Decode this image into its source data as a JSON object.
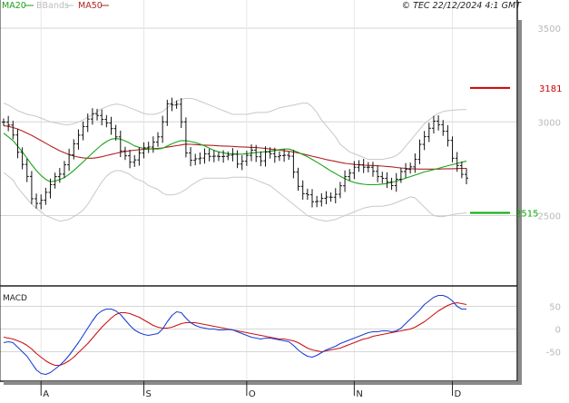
{
  "header": {
    "legend": [
      {
        "label": "MA20",
        "color": "#1aa31a"
      },
      {
        "label": "BBands",
        "color": "#bdbdbd"
      },
      {
        "label": "MA50",
        "color": "#b22222"
      }
    ],
    "copyright": "© TEC 22/12/2024 4:1 GMT"
  },
  "price_panel": {
    "y_ticks": [
      {
        "value": 3500,
        "label": "3500"
      },
      {
        "value": 3000,
        "label": "3000"
      },
      {
        "value": 2500,
        "label": "2500"
      }
    ],
    "levels": [
      {
        "value": 3181,
        "label": "3181",
        "color": "#cc0000"
      },
      {
        "value": 2515,
        "label": "2515",
        "color": "#00aa00"
      }
    ]
  },
  "macd_panel": {
    "title": "MACD",
    "y_ticks": [
      {
        "value": 50,
        "label": "50"
      },
      {
        "value": 0,
        "label": "0"
      },
      {
        "value": -50,
        "label": "-50"
      }
    ]
  },
  "x_axis": {
    "ticks": [
      {
        "index": 8,
        "label": "A"
      },
      {
        "index": 30,
        "label": "S"
      },
      {
        "index": 52,
        "label": "O"
      },
      {
        "index": 75,
        "label": "N"
      },
      {
        "index": 96,
        "label": "D"
      }
    ]
  },
  "chart_data": {
    "type": "line",
    "price_ylim": [
      2125,
      3650
    ],
    "macd_ylim": [
      -115,
      95
    ],
    "close": [
      2999,
      2983,
      2930,
      2838,
      2773,
      2709,
      2590,
      2565,
      2582,
      2624,
      2665,
      2708,
      2721,
      2771,
      2824,
      2883,
      2929,
      2975,
      3015,
      3043,
      3034,
      3013,
      2994,
      2964,
      2920,
      2845,
      2819,
      2785,
      2797,
      2834,
      2862,
      2866,
      2892,
      2920,
      3000,
      3096,
      3090,
      3094,
      3000,
      2834,
      2795,
      2803,
      2807,
      2829,
      2816,
      2817,
      2815,
      2816,
      2822,
      2827,
      2775,
      2790,
      2821,
      2849,
      2814,
      2792,
      2839,
      2830,
      2814,
      2820,
      2822,
      2817,
      2732,
      2656,
      2617,
      2611,
      2574,
      2576,
      2592,
      2599,
      2598,
      2614,
      2659,
      2708,
      2727,
      2758,
      2771,
      2758,
      2758,
      2736,
      2708,
      2699,
      2679,
      2660,
      2694,
      2735,
      2747,
      2760,
      2800,
      2880,
      2921,
      2966,
      3004,
      2985,
      2950,
      2901,
      2806,
      2767,
      2720,
      2700
    ],
    "ma20": [
      2940,
      2920,
      2900,
      2870,
      2840,
      2806,
      2772,
      2740,
      2714,
      2693,
      2681,
      2684,
      2692,
      2703,
      2720,
      2741,
      2763,
      2786,
      2810,
      2834,
      2856,
      2878,
      2895,
      2908,
      2911,
      2908,
      2898,
      2886,
      2872,
      2864,
      2859,
      2856,
      2855,
      2855,
      2859,
      2871,
      2883,
      2893,
      2900,
      2899,
      2895,
      2890,
      2881,
      2872,
      2860,
      2848,
      2840,
      2835,
      2830,
      2829,
      2828,
      2828,
      2830,
      2834,
      2836,
      2838,
      2841,
      2843,
      2847,
      2852,
      2855,
      2855,
      2848,
      2838,
      2826,
      2814,
      2800,
      2785,
      2770,
      2754,
      2738,
      2724,
      2710,
      2697,
      2685,
      2677,
      2671,
      2667,
      2665,
      2665,
      2666,
      2668,
      2671,
      2677,
      2684,
      2691,
      2700,
      2708,
      2716,
      2725,
      2733,
      2739,
      2745,
      2752,
      2759,
      2766,
      2772,
      2778,
      2785,
      2790
    ],
    "ma50": [
      2980,
      2976,
      2970,
      2962,
      2952,
      2940,
      2928,
      2914,
      2900,
      2886,
      2872,
      2859,
      2846,
      2835,
      2825,
      2818,
      2812,
      2808,
      2806,
      2806,
      2809,
      2814,
      2820,
      2826,
      2832,
      2838,
      2842,
      2846,
      2849,
      2851,
      2853,
      2855,
      2857,
      2859,
      2861,
      2865,
      2869,
      2873,
      2877,
      2881,
      2880,
      2879,
      2877,
      2876,
      2875,
      2874,
      2872,
      2871,
      2870,
      2869,
      2867,
      2866,
      2865,
      2864,
      2863,
      2861,
      2858,
      2855,
      2852,
      2849,
      2846,
      2843,
      2839,
      2834,
      2829,
      2823,
      2817,
      2811,
      2805,
      2799,
      2794,
      2789,
      2784,
      2779,
      2776,
      2773,
      2771,
      2769,
      2768,
      2767,
      2766,
      2764,
      2762,
      2760,
      2757,
      2754,
      2752,
      2750,
      2749,
      2748,
      2748,
      2748,
      2748,
      2748,
      2749,
      2750,
      2750,
      2751,
      2752,
      2752
    ],
    "bb_upper": [
      3100,
      3090,
      3075,
      3060,
      3050,
      3040,
      3035,
      3030,
      3020,
      3010,
      3000,
      2995,
      2990,
      2985,
      2985,
      2990,
      3000,
      3010,
      3025,
      3040,
      3055,
      3070,
      3080,
      3090,
      3095,
      3092,
      3085,
      3075,
      3065,
      3055,
      3045,
      3040,
      3040,
      3045,
      3055,
      3075,
      3095,
      3110,
      3120,
      3125,
      3125,
      3120,
      3110,
      3100,
      3090,
      3080,
      3070,
      3060,
      3050,
      3040,
      3040,
      3040,
      3040,
      3045,
      3050,
      3050,
      3050,
      3055,
      3065,
      3075,
      3080,
      3085,
      3090,
      3095,
      3100,
      3100,
      3080,
      3050,
      3010,
      2980,
      2950,
      2920,
      2880,
      2860,
      2840,
      2830,
      2820,
      2810,
      2800,
      2800,
      2800,
      2800,
      2805,
      2810,
      2820,
      2840,
      2870,
      2900,
      2930,
      2960,
      2990,
      3010,
      3030,
      3045,
      3055,
      3060,
      3062,
      3064,
      3065,
      3065
    ],
    "bb_lower": [
      2730,
      2710,
      2690,
      2650,
      2620,
      2590,
      2560,
      2540,
      2520,
      2500,
      2490,
      2480,
      2470,
      2475,
      2480,
      2495,
      2510,
      2530,
      2560,
      2600,
      2640,
      2680,
      2710,
      2730,
      2740,
      2740,
      2730,
      2720,
      2700,
      2690,
      2680,
      2660,
      2650,
      2640,
      2620,
      2610,
      2610,
      2615,
      2625,
      2640,
      2660,
      2675,
      2690,
      2700,
      2700,
      2700,
      2700,
      2700,
      2700,
      2705,
      2705,
      2705,
      2705,
      2700,
      2690,
      2680,
      2670,
      2660,
      2640,
      2620,
      2600,
      2580,
      2560,
      2540,
      2520,
      2500,
      2490,
      2480,
      2475,
      2470,
      2475,
      2480,
      2490,
      2500,
      2510,
      2520,
      2530,
      2540,
      2545,
      2550,
      2550,
      2550,
      2555,
      2560,
      2570,
      2580,
      2590,
      2600,
      2595,
      2570,
      2545,
      2520,
      2500,
      2495,
      2495,
      2500,
      2505,
      2510,
      2512,
      2515
    ],
    "macd": [
      -30,
      -28,
      -30,
      -40,
      -50,
      -60,
      -75,
      -90,
      -98,
      -100,
      -96,
      -88,
      -80,
      -70,
      -58,
      -44,
      -30,
      -14,
      2,
      18,
      32,
      40,
      44,
      44,
      40,
      32,
      20,
      8,
      -2,
      -8,
      -12,
      -14,
      -12,
      -10,
      0,
      16,
      30,
      38,
      36,
      24,
      14,
      8,
      4,
      2,
      0,
      0,
      -2,
      -2,
      -1,
      -2,
      -6,
      -10,
      -14,
      -18,
      -20,
      -22,
      -20,
      -20,
      -22,
      -24,
      -26,
      -28,
      -36,
      -46,
      -54,
      -60,
      -62,
      -58,
      -52,
      -46,
      -42,
      -38,
      -32,
      -28,
      -24,
      -20,
      -16,
      -12,
      -8,
      -6,
      -6,
      -4,
      -4,
      -6,
      -4,
      2,
      12,
      22,
      32,
      42,
      54,
      62,
      70,
      74,
      74,
      70,
      62,
      50,
      44,
      44
    ],
    "signal": [
      -18,
      -20,
      -22,
      -26,
      -30,
      -36,
      -44,
      -54,
      -62,
      -70,
      -76,
      -80,
      -80,
      -76,
      -70,
      -62,
      -52,
      -42,
      -32,
      -20,
      -8,
      4,
      14,
      24,
      32,
      36,
      36,
      34,
      30,
      26,
      20,
      14,
      8,
      4,
      2,
      2,
      4,
      8,
      12,
      14,
      14,
      14,
      12,
      10,
      8,
      6,
      4,
      2,
      0,
      -2,
      -4,
      -6,
      -8,
      -10,
      -12,
      -14,
      -16,
      -18,
      -20,
      -22,
      -22,
      -24,
      -26,
      -30,
      -36,
      -42,
      -46,
      -48,
      -50,
      -48,
      -46,
      -44,
      -42,
      -38,
      -34,
      -30,
      -26,
      -22,
      -20,
      -16,
      -14,
      -12,
      -10,
      -8,
      -6,
      -4,
      -2,
      0,
      4,
      10,
      16,
      24,
      32,
      40,
      46,
      52,
      56,
      58,
      56,
      54
    ],
    "series": [
      {
        "name": "MA20",
        "key": "ma20",
        "color": "#1aa31a"
      },
      {
        "name": "BBands",
        "key": "bb_upper",
        "color": "#bdbdbd"
      },
      {
        "name": "MA50",
        "key": "ma50",
        "color": "#b22222"
      }
    ],
    "grid": true
  }
}
